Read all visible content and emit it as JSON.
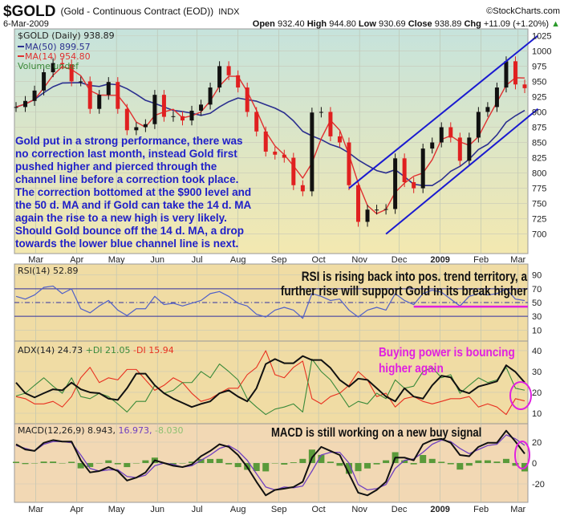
{
  "header": {
    "symbol": "$GOLD",
    "description": "(Gold - Continuous Contract (EOD))",
    "exchange": "INDX",
    "copyright": "©StockCharts.com",
    "date": "6-Mar-2009",
    "open_label": "Open",
    "open": "932.40",
    "high_label": "High",
    "high": "944.80",
    "low_label": "Low",
    "low": "930.69",
    "close_label": "Close",
    "close": "938.89",
    "chg_label": "Chg",
    "chg": "+11.09 (+1.20%)",
    "chg_arrow": "▲"
  },
  "colors": {
    "price_bg_top": "#c6e3dc",
    "price_bg_bottom": "#f3e8b0",
    "indicator_bg": "#f0dca4",
    "macd_bg": "#f2d8b4",
    "up": "#111111",
    "down": "#e02020",
    "ma50": "#2b2f8f",
    "ma14": "#e03030",
    "channel": "#1a1ad0",
    "annotation_blue": "#2020c8",
    "annotation_magenta": "#e020e0",
    "rsi": "#5060c8",
    "adx": "#111111",
    "plus_di": "#3a8a3a",
    "minus_di": "#e83020",
    "macd": "#111111",
    "signal": "#7040c0",
    "hist": "#5a9a3a"
  },
  "legend": {
    "price": "$GOLD (Daily) 938.89",
    "ma50": "MA(50) 899.57",
    "ma14": "MA(14) 954.80",
    "volume": "Volume undef",
    "rsi": "RSI(14) 52.89",
    "adx": "ADX(14) 24.73",
    "plus_di": "+DI 21.05",
    "minus_di": "-DI 15.94",
    "macd": "MACD(12,26,9) 8.943,",
    "signal": "16.973,",
    "hist": "-8.030"
  },
  "annotations": {
    "main": [
      "Gold put in a strong performance, there was",
      "no correction last month, instead Gold first",
      "pushed higher and pierced through the",
      "channel line before a correction took place.",
      "The correction bottomed at the $900 level and",
      "the 50 d. MA and if Gold can take the 14 d. MA",
      "again the rise to a new high is very likely.",
      "Should Gold bounce off the 14 d. MA, a drop",
      "towards the lower blue channel line is next."
    ],
    "rsi": [
      "RSI is rising back into pos. trend territory, a",
      "further rise will support Gold in its break higher"
    ],
    "adx": [
      "Buying power is bouncing",
      "higher again"
    ],
    "macd": "MACD is still working on a new buy signal",
    "rsi_support_level": 44
  },
  "chart_data": {
    "type": "line",
    "months": [
      {
        "date": "2008-03-01",
        "label": "Mar"
      },
      {
        "date": "2008-04-01",
        "label": "Apr"
      },
      {
        "date": "2008-05-01",
        "label": "May"
      },
      {
        "date": "2008-06-01",
        "label": "Jun"
      },
      {
        "date": "2008-07-01",
        "label": "Jul"
      },
      {
        "date": "2008-08-01",
        "label": "Aug"
      },
      {
        "date": "2008-09-01",
        "label": "Sep"
      },
      {
        "date": "2008-10-01",
        "label": "Oct"
      },
      {
        "date": "2008-11-01",
        "label": "Nov"
      },
      {
        "date": "2008-12-01",
        "label": "Dec"
      },
      {
        "date": "2009-01-01",
        "label": "2009"
      },
      {
        "date": "2009-02-01",
        "label": "Feb"
      },
      {
        "date": "2009-03-01",
        "label": "Mar"
      }
    ],
    "dates": [
      "2008-02-15",
      "2008-02-22",
      "2008-02-29",
      "2008-03-07",
      "2008-03-14",
      "2008-03-21",
      "2008-03-28",
      "2008-04-04",
      "2008-04-11",
      "2008-04-18",
      "2008-04-25",
      "2008-05-02",
      "2008-05-09",
      "2008-05-16",
      "2008-05-23",
      "2008-05-30",
      "2008-06-06",
      "2008-06-13",
      "2008-06-20",
      "2008-06-27",
      "2008-07-04",
      "2008-07-11",
      "2008-07-18",
      "2008-07-25",
      "2008-08-01",
      "2008-08-08",
      "2008-08-15",
      "2008-08-22",
      "2008-08-29",
      "2008-09-05",
      "2008-09-12",
      "2008-09-19",
      "2008-09-26",
      "2008-10-03",
      "2008-10-10",
      "2008-10-17",
      "2008-10-24",
      "2008-10-31",
      "2008-11-07",
      "2008-11-14",
      "2008-11-21",
      "2008-11-28",
      "2008-12-05",
      "2008-12-12",
      "2008-12-19",
      "2008-12-26",
      "2009-01-02",
      "2009-01-09",
      "2009-01-16",
      "2009-01-23",
      "2009-01-30",
      "2009-02-06",
      "2009-02-13",
      "2009-02-20",
      "2009-02-27",
      "2009-03-06"
    ],
    "price": {
      "ylim": [
        668,
        1036
      ],
      "ticks": [
        700,
        725,
        750,
        775,
        800,
        825,
        850,
        875,
        900,
        925,
        950,
        975,
        1000,
        1025
      ],
      "close": [
        908,
        918,
        935,
        965,
        980,
        978,
        950,
        950,
        905,
        928,
        949,
        905,
        870,
        875,
        880,
        928,
        892,
        893,
        886,
        902,
        912,
        940,
        975,
        960,
        940,
        900,
        868,
        835,
        830,
        825,
        780,
        770,
        899,
        900,
        860,
        850,
        780,
        720,
        740,
        740,
        741,
        824,
        785,
        775,
        840,
        850,
        875,
        858,
        820,
        858,
        900,
        908,
        940,
        983,
        945,
        938.89
      ],
      "channel_upper": [
        {
          "date": "2008-10-24",
          "value": 775
        },
        {
          "date": "2009-03-16",
          "value": 1025
        }
      ],
      "channel_lower": [
        {
          "date": "2008-11-21",
          "value": 700
        },
        {
          "date": "2009-03-16",
          "value": 905
        }
      ]
    },
    "rsi": {
      "ylim": [
        -6,
        106
      ],
      "ticks": [
        10,
        30,
        50,
        70,
        90
      ],
      "levels": [
        70,
        50,
        30
      ],
      "values": [
        59,
        55,
        61,
        72,
        74,
        63,
        70,
        41,
        35,
        45,
        53,
        39,
        31,
        41,
        41,
        59,
        47,
        49,
        45,
        49,
        53,
        63,
        66,
        59,
        49,
        45,
        33,
        29,
        39,
        43,
        39,
        27,
        63,
        59,
        53,
        55,
        39,
        29,
        39,
        43,
        39,
        63,
        53,
        47,
        63,
        68,
        65,
        55,
        45,
        59,
        63,
        61,
        63,
        70,
        55,
        52.89
      ]
    },
    "adx": {
      "ylim": [
        5,
        44.6
      ],
      "ticks": [
        10,
        20,
        30,
        40
      ],
      "adx": [
        24.7,
        19.6,
        17.6,
        19.6,
        21.5,
        21,
        24.7,
        21.5,
        20,
        19.6,
        17,
        16.4,
        22,
        29,
        29,
        23.4,
        19.6,
        17,
        15,
        13,
        14.5,
        15.7,
        19.6,
        21,
        18,
        15.7,
        22,
        33.6,
        36,
        34,
        34,
        37.4,
        35.5,
        35.5,
        31.7,
        26,
        22.8,
        26.6,
        26,
        22,
        18,
        15.7,
        22,
        18,
        17,
        23.4,
        28,
        27.2,
        21,
        19.6,
        22.8,
        24,
        25.3,
        33,
        29.8,
        24.73
      ],
      "plus_di": [
        18.3,
        19.6,
        23.4,
        27,
        23,
        19.6,
        27,
        18,
        17,
        19.6,
        18,
        14.5,
        10.6,
        15.7,
        15.7,
        23.4,
        19.6,
        21,
        24.7,
        24.7,
        30,
        27,
        33.6,
        30,
        26,
        17,
        13,
        9.4,
        12,
        13,
        14.5,
        10.6,
        36,
        30,
        26,
        19.6,
        13,
        15.7,
        14.5,
        19.6,
        17,
        26,
        22,
        23,
        30,
        32,
        27,
        28.5,
        19.6,
        23.4,
        27,
        24.7,
        26,
        32,
        22,
        21.05
      ],
      "minus_di": [
        18,
        17,
        14.5,
        14.5,
        15.7,
        13,
        18,
        27,
        32,
        24.7,
        27,
        26,
        31,
        31,
        26,
        21,
        23.4,
        27,
        24.7,
        19.6,
        15.7,
        17,
        19.6,
        22,
        22,
        28.5,
        32,
        40,
        28.5,
        27,
        32,
        35,
        17,
        14.5,
        18,
        19.6,
        23.4,
        30,
        26,
        18,
        19.6,
        13,
        17,
        18,
        15.7,
        14.5,
        15.7,
        17,
        17,
        18,
        13,
        14.5,
        13,
        9.4,
        17,
        15.94
      ]
    },
    "macd": {
      "ylim": [
        -37.7,
        37.7
      ],
      "ticks": [
        -20,
        0,
        20
      ],
      "macd": [
        18,
        13,
        11.6,
        19.4,
        22,
        20.6,
        20.6,
        2.6,
        -9,
        -7.7,
        -3.9,
        -7.7,
        -16.8,
        -14,
        -9,
        2.6,
        0,
        -2.6,
        -3.9,
        -1.3,
        6.5,
        11.6,
        18,
        15.5,
        7.7,
        -3.9,
        -18,
        -31,
        -25.8,
        -24.5,
        -23,
        -18,
        5.2,
        15.5,
        11.6,
        7.7,
        -10.3,
        -28.4,
        -31,
        -25.8,
        -18,
        5.2,
        5.2,
        2.6,
        18,
        22,
        23.2,
        19.4,
        7.7,
        6.5,
        15.5,
        19.4,
        19.4,
        31,
        20.6,
        8.943
      ],
      "signal": [
        16.8,
        14,
        11.6,
        18,
        20.6,
        20.6,
        19.4,
        7.7,
        -5.2,
        -7.7,
        -6.5,
        -6.5,
        -12.9,
        -14,
        -11.6,
        -2.6,
        0,
        -1.3,
        -3.9,
        -2.6,
        2.6,
        7.7,
        14,
        16.8,
        11.6,
        2.6,
        -10.3,
        -23,
        -25.8,
        -23,
        -23.7,
        -22,
        -7.7,
        7.7,
        10.3,
        10.3,
        0,
        -20.6,
        -25.8,
        -24.5,
        -20.6,
        -5.2,
        2.6,
        3.9,
        10.3,
        18,
        22,
        20.6,
        14,
        9,
        13,
        16.8,
        18,
        27,
        23.2,
        16.973
      ]
    }
  }
}
